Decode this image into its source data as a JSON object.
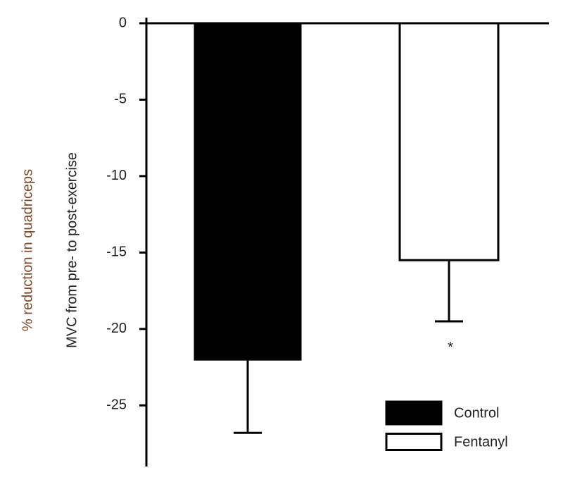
{
  "chart_data": {
    "type": "bar",
    "y_label": [
      "% reduction in quadriceps",
      "MVC from pre- to post-exercise"
    ],
    "ylim": [
      -29,
      0
    ],
    "yticks": [
      0,
      -5,
      -10,
      -15,
      -20,
      -25
    ],
    "series": [
      {
        "name": "Control",
        "color": "#000000",
        "values": [
          -22
        ],
        "errors": [
          4.8
        ]
      },
      {
        "name": "Fentanyl",
        "color": "#ffffff",
        "values": [
          -15.5
        ],
        "errors": [
          4
        ]
      }
    ],
    "annotation": "*",
    "legend": "lower-right"
  }
}
